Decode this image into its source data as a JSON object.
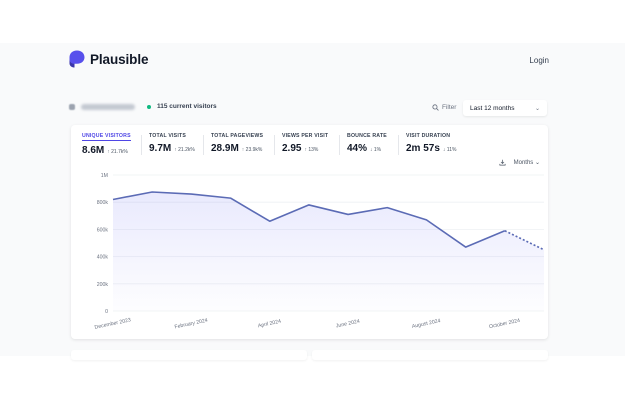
{
  "header": {
    "logo_text": "Plausible",
    "logo_icon": "plausible-logo-icon",
    "login_label": "Login"
  },
  "site": {
    "current_visitors": "115 current visitors"
  },
  "toolbar": {
    "filter_label": "Filter",
    "period_label": "Last 12 months"
  },
  "stats": [
    {
      "label": "UNIQUE VISITORS",
      "value": "8.6M",
      "change": "↑ 21.7k%",
      "active": true
    },
    {
      "label": "TOTAL VISITS",
      "value": "9.7M",
      "change": "↑ 21.2k%",
      "active": false
    },
    {
      "label": "TOTAL PAGEVIEWS",
      "value": "28.9M",
      "change": "↑ 23.9k%",
      "active": false
    },
    {
      "label": "VIEWS PER VISIT",
      "value": "2.95",
      "change": "↑ 13%",
      "active": false
    },
    {
      "label": "BOUNCE RATE",
      "value": "44%",
      "change": "↓ 1%",
      "active": false
    },
    {
      "label": "VISIT DURATION",
      "value": "2m 57s",
      "change": "↓ 11%",
      "active": false
    }
  ],
  "graph_controls": {
    "interval_label": "Months",
    "download_icon": "download-icon"
  },
  "colors": {
    "accent": "#4f46e5",
    "line": "#5b6bb5",
    "live": "#10b981"
  },
  "chart_data": {
    "type": "area",
    "y_ticks": [
      "1M",
      "800k",
      "600k",
      "400k",
      "200k",
      "0"
    ],
    "y_tick_values": [
      1000000,
      800000,
      600000,
      400000,
      200000,
      0
    ],
    "ylim": [
      0,
      1000000
    ],
    "x_tick_labels": [
      "December 2023",
      "February 2024",
      "April 2024",
      "June 2024",
      "August 2024",
      "October 2024"
    ],
    "x_tick_indices": [
      0,
      2,
      4,
      6,
      8,
      10
    ],
    "series": [
      {
        "values": [
          820000,
          875000,
          860000,
          830000,
          660000,
          780000,
          710000,
          760000,
          670000,
          470000,
          590000,
          450000
        ],
        "dashed_from_index": 10
      }
    ],
    "grid": true
  }
}
